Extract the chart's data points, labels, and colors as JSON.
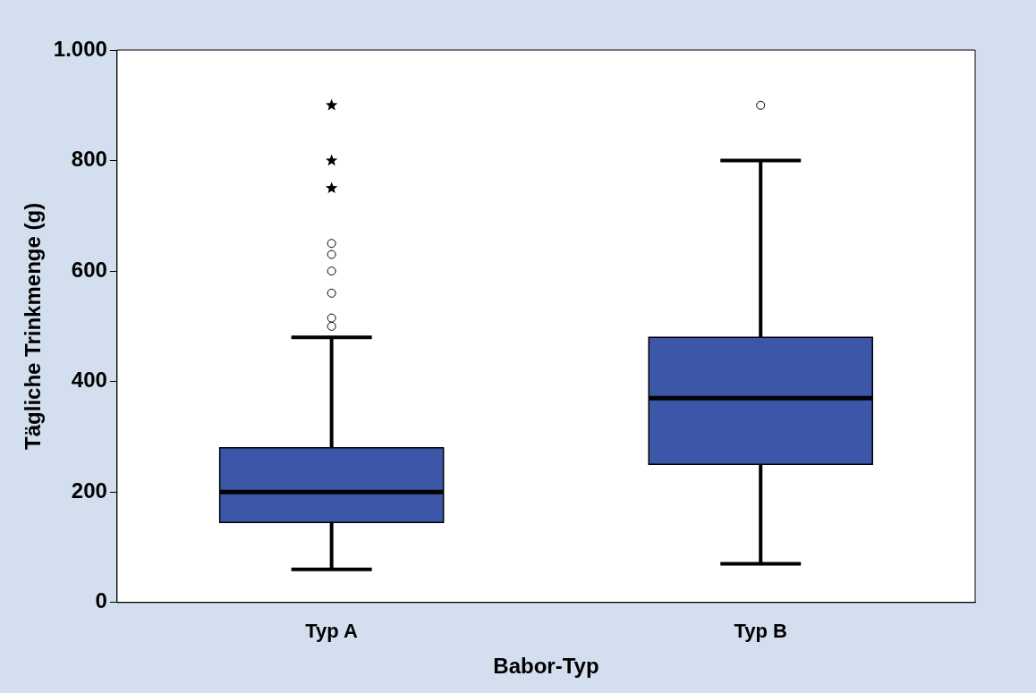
{
  "chart_data": {
    "type": "box",
    "categories": [
      "Typ A",
      "Typ B"
    ],
    "xlabel": "Babor-Typ",
    "ylabel": "Tägliche Trinkmenge (g)",
    "ylim": [
      0,
      1000
    ],
    "yticks": [
      0,
      200,
      400,
      600,
      800,
      {
        "value": 1000,
        "label": "1.000"
      }
    ],
    "color": "#3d57a8",
    "grid": false,
    "legend": false,
    "boxes": [
      {
        "low": 60,
        "q1": 145,
        "median": 200,
        "q3": 280,
        "high": 480,
        "outliers": [
          500,
          515,
          560,
          600,
          630,
          650
        ]
      },
      {
        "low": 70,
        "q1": 250,
        "median": 370,
        "q3": 480,
        "high": 800,
        "outliers": [
          900
        ]
      }
    ],
    "series": [
      {
        "type": "scatter",
        "x": [
          "Typ A",
          "Typ A",
          "Typ A"
        ],
        "values": [
          750,
          800,
          900
        ],
        "marker": "star",
        "color": "#000000"
      }
    ]
  }
}
